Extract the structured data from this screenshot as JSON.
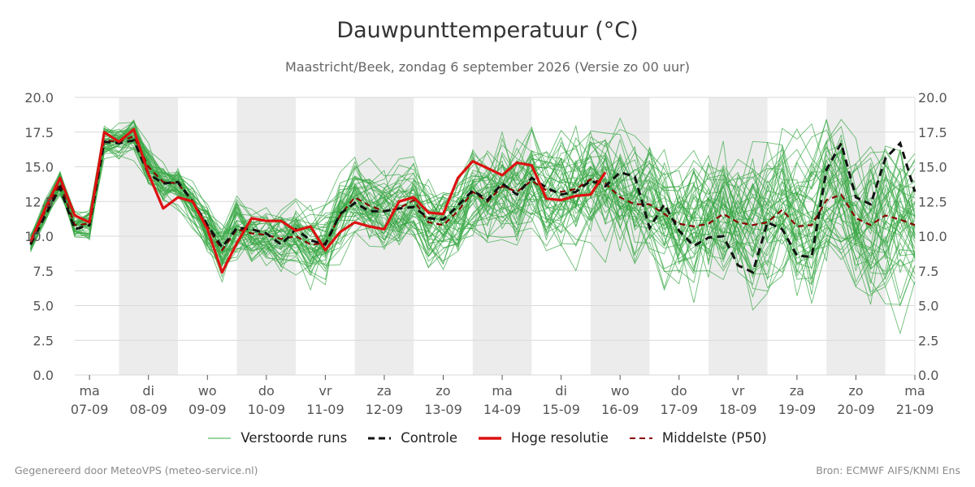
{
  "header": {
    "title": "Dauwpunttemperatuur (°C)",
    "subtitle": "Maastricht/Beek, zondag  6 september 2026 (Versie zo 00 uur)"
  },
  "footer": {
    "generated": "Gegenereerd door MeteoVPS (meteo-service.nl)",
    "source": "Bron: ECMWF AIFS/KNMI Ens"
  },
  "legend": [
    {
      "label": "Verstoorde runs",
      "color": "#3aa845",
      "style": "thin-solid"
    },
    {
      "label": "Controle",
      "color": "#111111",
      "style": "dashed"
    },
    {
      "label": "Hoge resolutie",
      "color": "#dd1111",
      "style": "thick-solid"
    },
    {
      "label": "Middelste (P50)",
      "color": "#8b0000",
      "style": "dashed"
    }
  ],
  "chart_data": {
    "type": "line",
    "x_unit": "days since 6 sep 2026 00 uur",
    "xlim": [
      0.75,
      15.0
    ],
    "ylim": [
      0,
      20
    ],
    "yticks": [
      0.0,
      2.5,
      5.0,
      7.5,
      10.0,
      12.5,
      15.0,
      17.5,
      20.0
    ],
    "grid": true,
    "weekend_shading": [
      [
        1.5,
        2.5
      ],
      [
        3.5,
        4.5
      ],
      [
        5.5,
        6.5
      ],
      [
        7.5,
        8.5
      ],
      [
        9.5,
        10.5
      ],
      [
        11.5,
        12.5
      ],
      [
        13.5,
        14.5
      ]
    ],
    "xticks": [
      {
        "x": 1.0,
        "day": "ma",
        "date": "07-09"
      },
      {
        "x": 2.0,
        "day": "di",
        "date": "08-09"
      },
      {
        "x": 3.0,
        "day": "wo",
        "date": "09-09"
      },
      {
        "x": 4.0,
        "day": "do",
        "date": "10-09"
      },
      {
        "x": 5.0,
        "day": "vr",
        "date": "11-09"
      },
      {
        "x": 6.0,
        "day": "za",
        "date": "12-09"
      },
      {
        "x": 7.0,
        "day": "zo",
        "date": "13-09"
      },
      {
        "x": 8.0,
        "day": "ma",
        "date": "14-09"
      },
      {
        "x": 9.0,
        "day": "di",
        "date": "15-09"
      },
      {
        "x": 10.0,
        "day": "wo",
        "date": "16-09"
      },
      {
        "x": 11.0,
        "day": "do",
        "date": "17-09"
      },
      {
        "x": 12.0,
        "day": "vr",
        "date": "18-09"
      },
      {
        "x": 13.0,
        "day": "za",
        "date": "19-09"
      },
      {
        "x": 14.0,
        "day": "zo",
        "date": "20-09"
      },
      {
        "x": 15.0,
        "day": "ma",
        "date": "21-09"
      }
    ],
    "x_start": 0.0,
    "x_step": 0.25,
    "hres": [
      9.6,
      12.0,
      14.2,
      11.5,
      11.0,
      17.5,
      16.8,
      17.7,
      14.5,
      12.0,
      12.8,
      12.5,
      10.5,
      7.4,
      9.5,
      11.3,
      11.1,
      11.1,
      10.4,
      10.7,
      9.0,
      10.3,
      11.0,
      10.7,
      10.5,
      12.5,
      12.8,
      11.7,
      11.6,
      14.2,
      15.4,
      14.9,
      14.4,
      15.3,
      15.1,
      12.7,
      12.6,
      12.9,
      13.0,
      14.6
    ],
    "control": [
      9.4,
      11.5,
      13.5,
      10.5,
      10.8,
      16.8,
      16.7,
      16.9,
      14.5,
      13.8,
      13.9,
      12.5,
      10.8,
      9.2,
      10.6,
      10.5,
      10.2,
      9.4,
      10.5,
      9.7,
      9.4,
      11.6,
      12.4,
      11.8,
      11.8,
      12.0,
      12.1,
      11.3,
      11.2,
      12.2,
      13.3,
      12.6,
      13.8,
      13.0,
      14.2,
      13.5,
      13.0,
      13.2,
      14.0,
      13.6,
      14.6,
      14.3,
      10.6,
      12.3,
      10.4,
      9.3,
      9.9,
      10.0,
      7.9,
      7.4,
      11.0,
      10.5,
      8.6,
      8.5,
      14.8,
      16.7,
      12.8,
      12.3,
      15.6,
      16.7,
      13.2
    ],
    "p50": [
      9.5,
      11.8,
      13.8,
      10.8,
      10.9,
      16.9,
      16.8,
      17.2,
      15.0,
      13.9,
      13.8,
      12.5,
      10.7,
      9.0,
      10.5,
      10.2,
      10.1,
      9.8,
      10.0,
      9.4,
      9.5,
      11.5,
      12.8,
      12.2,
      11.8,
      12.0,
      12.6,
      11.0,
      10.8,
      11.8,
      13.2,
      12.5,
      13.6,
      13.2,
      14.0,
      13.3,
      13.2,
      13.4,
      14.1,
      13.8,
      12.8,
      12.3,
      12.3,
      11.6,
      10.9,
      10.7,
      10.9,
      11.6,
      11.0,
      10.8,
      11.0,
      11.9,
      10.7,
      10.8,
      12.6,
      13.0,
      11.3,
      10.8,
      11.5,
      11.2,
      10.8
    ]
  }
}
